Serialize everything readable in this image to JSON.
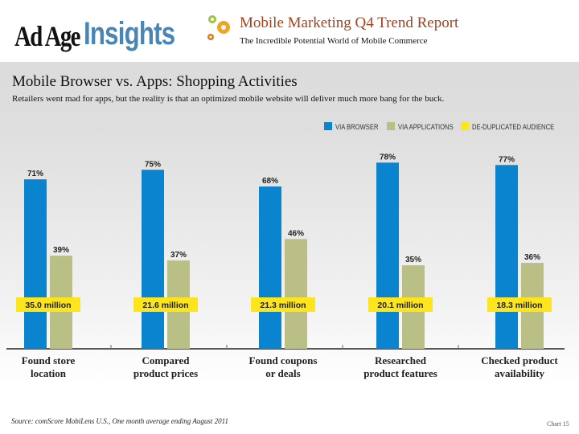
{
  "header": {
    "logo_text": "Ad Age Insights",
    "report_title": "Mobile Marketing Q4 Trend Report",
    "report_subtitle": "The Incredible Potential World of Mobile Commerce"
  },
  "chart_data": {
    "type": "bar",
    "title": "Mobile Browser vs. Apps: Shopping Activities",
    "subtitle": "Retailers went mad for apps, but the reality is that an optimized mobile website will deliver much more bang for the buck.",
    "categories": [
      "Found store location",
      "Compared product prices",
      "Found coupons or deals",
      "Researched product features",
      "Checked product availability"
    ],
    "category_lines": [
      [
        "Found store",
        "location"
      ],
      [
        "Compared",
        "product prices"
      ],
      [
        "Found coupons",
        "or deals"
      ],
      [
        "Researched",
        "product features"
      ],
      [
        "Checked product",
        "availability"
      ]
    ],
    "series": [
      {
        "name": "VIA BROWSER",
        "color": "#0b84d0",
        "values": [
          71,
          75,
          68,
          78,
          77
        ],
        "labels": [
          "71%",
          "75%",
          "68%",
          "78%",
          "77%"
        ]
      },
      {
        "name": "VIA APPLICATIONS",
        "color": "#b9bf85",
        "values": [
          39,
          37,
          46,
          35,
          36
        ],
        "labels": [
          "39%",
          "37%",
          "46%",
          "35%",
          "36%"
        ]
      },
      {
        "name": "DE-DUPLICATED AUDIENCE",
        "color": "#fce51c",
        "values": [
          35.0,
          21.6,
          21.3,
          20.1,
          18.3
        ],
        "labels": [
          "35.0 million",
          "21.6 million",
          "21.3 million",
          "20.1 million",
          "18.3 million"
        ]
      }
    ],
    "ylim": [
      0,
      100
    ],
    "legend_position": "top-right",
    "grid": false
  },
  "footer": {
    "source": "Source: comScore MobiLens U.S., One month average ending August 2011",
    "page": "Chart 15"
  }
}
